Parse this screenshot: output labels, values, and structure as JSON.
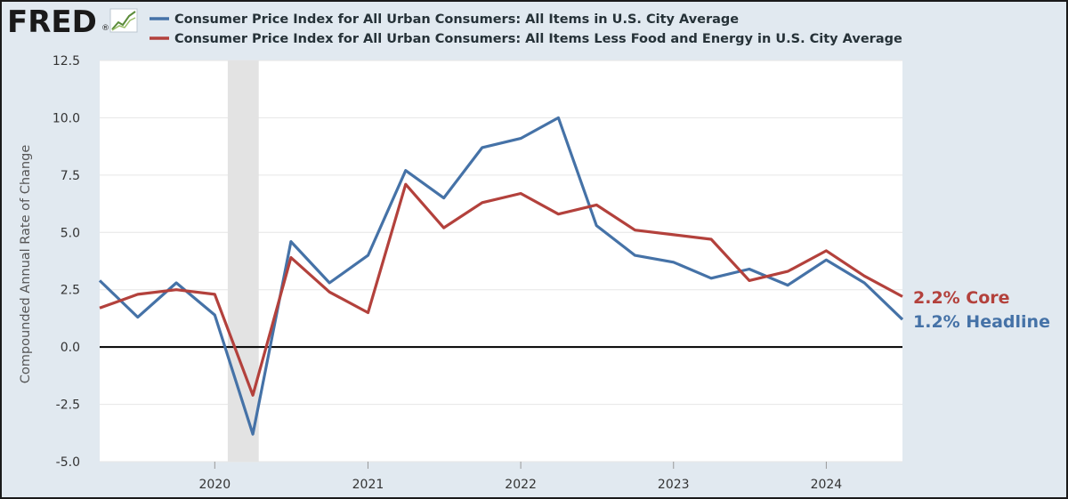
{
  "logo": {
    "text": "FRED",
    "registered": "®"
  },
  "colors": {
    "headline": "#4572a7",
    "core": "#b3413c",
    "recession": "#e3e3e3",
    "grid": "#e6e6e6",
    "zero_line": "#000000"
  },
  "chart_data": {
    "type": "line",
    "ylabel": "Compounded Annual Rate of Change",
    "ylim": [
      -5.0,
      12.5
    ],
    "y_ticks": [
      "12.5",
      "10.0",
      "7.5",
      "5.0",
      "2.5",
      "0.0",
      "-2.5",
      "-5.0"
    ],
    "x_ticks": [
      "2020",
      "2021",
      "2022",
      "2023",
      "2024"
    ],
    "grid": true,
    "legend_position": "top",
    "recession_band": [
      "2020-02-01",
      "2020-04-15"
    ],
    "x": [
      "2019-04-01",
      "2019-07-01",
      "2019-10-01",
      "2020-01-01",
      "2020-04-01",
      "2020-07-01",
      "2020-10-01",
      "2021-01-01",
      "2021-04-01",
      "2021-07-01",
      "2021-10-01",
      "2022-01-01",
      "2022-04-01",
      "2022-07-01",
      "2022-10-01",
      "2023-01-01",
      "2023-04-01",
      "2023-07-01",
      "2023-10-01",
      "2024-01-01",
      "2024-04-01",
      "2024-07-01"
    ],
    "series": [
      {
        "name": "Consumer Price Index for All Urban Consumers: All Items in U.S. City Average",
        "key": "headline",
        "values": [
          2.9,
          1.3,
          2.8,
          1.4,
          -3.8,
          4.6,
          2.8,
          4.0,
          7.7,
          6.5,
          8.7,
          9.1,
          10.0,
          5.3,
          4.0,
          3.7,
          3.0,
          3.4,
          2.7,
          3.8,
          2.8,
          1.2
        ]
      },
      {
        "name": "Consumer Price Index for All Urban Consumers: All Items Less Food and Energy in U.S. City Average",
        "key": "core",
        "values": [
          1.7,
          2.3,
          2.5,
          2.3,
          -2.1,
          3.9,
          2.4,
          1.5,
          7.1,
          5.2,
          6.3,
          6.7,
          5.8,
          6.2,
          5.1,
          4.9,
          4.7,
          2.9,
          3.3,
          4.2,
          3.1,
          2.2
        ]
      }
    ],
    "annotations": [
      {
        "text": "2.2% Core",
        "series": "core"
      },
      {
        "text": "1.2% Headline",
        "series": "headline"
      }
    ]
  }
}
